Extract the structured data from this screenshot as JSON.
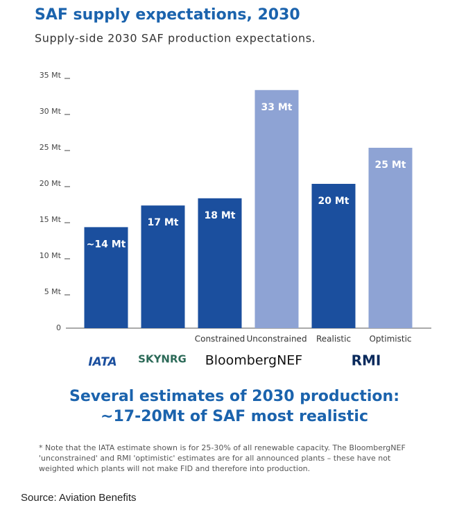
{
  "chart_data": {
    "type": "bar",
    "title": "SAF supply expectations, 2030",
    "subtitle": "Supply-side 2030 SAF production expectations.",
    "categories": [
      null,
      null,
      "Constrained",
      "Unconstrained",
      "Realistic",
      "Optimistic"
    ],
    "values": [
      14,
      17,
      18,
      33,
      20,
      25
    ],
    "value_labels": [
      "~14 Mt",
      "17 Mt",
      "18 Mt",
      "33 Mt",
      "20 Mt",
      "25 Mt"
    ],
    "colors": [
      "#1b4f9e",
      "#1b4f9e",
      "#1b4f9e",
      "#8ea3d4",
      "#1b4f9e",
      "#8ea3d4"
    ],
    "ylim": [
      0,
      35
    ],
    "yticks": [
      0,
      {
        "value": 5,
        "label": "5 Mt"
      },
      {
        "value": 10,
        "label": "10 Mt"
      },
      {
        "value": 15,
        "label": "15 Mt"
      },
      {
        "value": 20,
        "label": "20 Mt"
      },
      {
        "value": 25,
        "label": "25 Mt"
      },
      {
        "value": 30,
        "label": "30 Mt"
      },
      {
        "value": 35,
        "label": "35 Mt"
      }
    ],
    "sources": [
      "IATA",
      "SKYNRG",
      "BloombergNEF",
      "RMI"
    ],
    "headline": [
      "Several estimates of 2030 production:",
      "~17-20Mt of SAF most realistic"
    ],
    "note": [
      "* Note that the IATA estimate shown is for 25-30% of all renewable capacity. The BloombergNEF",
      "'unconstrained' and RMI 'optimistic' estimates are for all announced plants – these have not",
      "weighted which plants will not make FID and therefore into production."
    ],
    "source": "Source: Aviation Benefits"
  }
}
